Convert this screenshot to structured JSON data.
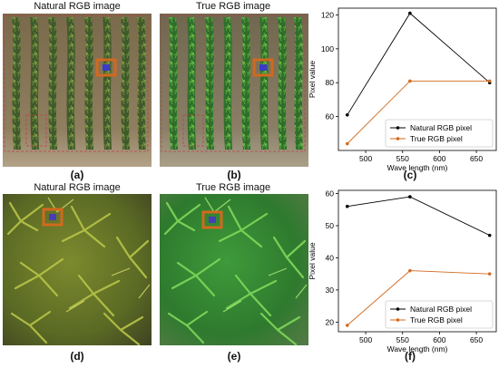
{
  "figure": {
    "panel_a": {
      "title": "Natural RGB image",
      "caption": "(a)"
    },
    "panel_b": {
      "title": "True RGB image",
      "caption": "(b)"
    },
    "panel_c": {
      "caption": "(c)"
    },
    "panel_d": {
      "title": "Natural RGB image",
      "caption": "(d)"
    },
    "panel_e": {
      "title": "True RGB image",
      "caption": "(e)"
    },
    "panel_f": {
      "caption": "(f)"
    }
  },
  "chart_data": [
    {
      "type": "line",
      "panel": "c",
      "xlabel": "Wave length (nm)",
      "ylabel": "Pixel value",
      "xlim": [
        463,
        677
      ],
      "ylim": [
        40,
        124
      ],
      "xticks": [
        500,
        550,
        600,
        650
      ],
      "yticks": [
        60,
        80,
        100,
        120
      ],
      "x": [
        475,
        560,
        668
      ],
      "series": [
        {
          "name": "Natural RGB pixel",
          "color": "#000000",
          "values": [
            61,
            121,
            80
          ]
        },
        {
          "name": "True RGB pixel",
          "color": "#d2691e",
          "values": [
            44,
            81,
            81
          ]
        }
      ],
      "legend": "bottom-right",
      "grid": false
    },
    {
      "type": "line",
      "panel": "f",
      "xlabel": "Wave length (nm)",
      "ylabel": "Pixel value",
      "xlim": [
        463,
        677
      ],
      "ylim": [
        17,
        61
      ],
      "xticks": [
        500,
        550,
        600,
        650
      ],
      "yticks": [
        20,
        30,
        40,
        50,
        60
      ],
      "x": [
        475,
        560,
        668
      ],
      "series": [
        {
          "name": "Natural RGB pixel",
          "color": "#000000",
          "values": [
            56,
            59,
            47
          ]
        },
        {
          "name": "True RGB pixel",
          "color": "#d2691e",
          "values": [
            19,
            36,
            35
          ]
        }
      ],
      "legend": "bottom-right",
      "grid": false
    }
  ]
}
